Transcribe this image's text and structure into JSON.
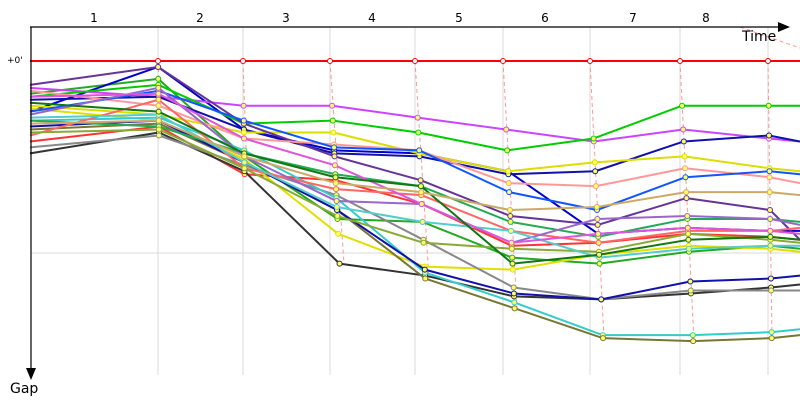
{
  "chart_data": {
    "type": "line",
    "x_axis_label": "Time",
    "y_axis_label": "Gap",
    "y_zero_label": "+0'",
    "laps": [
      "1",
      "2",
      "3",
      "4",
      "5",
      "6",
      "7",
      "8"
    ],
    "grid": true,
    "leader_series": {
      "color": "#ff0000",
      "values": [
        0,
        0,
        0,
        0,
        0,
        0,
        0,
        0,
        0,
        0
      ]
    },
    "y_units": "relative gap (0 = leader, 1 = bottom of chart)",
    "series": [
      {
        "color": "#ff3333",
        "values": [
          0.27,
          0.22,
          0.38,
          0.4,
          0.48,
          0.62,
          0.61,
          0.58,
          0.59,
          0.6
        ]
      },
      {
        "color": "#22aa22",
        "values": [
          0.11,
          0.06,
          0.32,
          0.53,
          0.54,
          0.66,
          0.68,
          0.64,
          0.62,
          0.63
        ]
      },
      {
        "color": "#0000cc",
        "values": [
          0.17,
          0.02,
          0.23,
          0.3,
          0.31,
          0.37,
          0.58,
          0.56,
          0.57,
          0.57
        ]
      },
      {
        "color": "#cc44ff",
        "values": [
          0.09,
          0.12,
          0.15,
          0.15,
          0.19,
          0.23,
          0.27,
          0.23,
          0.26,
          0.27
        ]
      },
      {
        "color": "#00cc00",
        "values": [
          0.12,
          0.08,
          0.21,
          0.2,
          0.24,
          0.3,
          0.26,
          0.15,
          0.15,
          0.15
        ]
      },
      {
        "color": "#1111aa",
        "values": [
          0.13,
          0.12,
          0.23,
          0.31,
          0.32,
          0.38,
          0.37,
          0.27,
          0.25,
          0.27
        ]
      },
      {
        "color": "#dddd00",
        "values": [
          0.15,
          0.18,
          0.24,
          0.24,
          0.31,
          0.37,
          0.34,
          0.32,
          0.36,
          0.37
        ]
      },
      {
        "color": "#e0e000",
        "values": [
          0.16,
          0.2,
          0.33,
          0.58,
          0.69,
          0.7,
          0.65,
          0.62,
          0.63,
          0.64
        ]
      },
      {
        "color": "#333333",
        "values": [
          0.31,
          0.24,
          0.37,
          0.68,
          0.72,
          0.79,
          0.8,
          0.78,
          0.76,
          0.75
        ]
      },
      {
        "color": "#888888",
        "values": [
          0.29,
          0.25,
          0.35,
          0.45,
          0.6,
          0.76,
          0.8,
          0.77,
          0.77,
          0.77
        ]
      },
      {
        "color": "#33cccc",
        "values": [
          0.2,
          0.19,
          0.3,
          0.46,
          0.71,
          0.81,
          0.92,
          0.92,
          0.91,
          0.9
        ]
      },
      {
        "color": "#777733",
        "values": [
          0.23,
          0.21,
          0.34,
          0.5,
          0.73,
          0.83,
          0.93,
          0.94,
          0.93,
          0.92
        ]
      },
      {
        "color": "#1111aa",
        "values": [
          0.22,
          0.2,
          0.34,
          0.5,
          0.7,
          0.78,
          0.8,
          0.74,
          0.73,
          0.72
        ]
      },
      {
        "color": "#663399",
        "values": [
          0.08,
          0.02,
          0.21,
          0.32,
          0.4,
          0.52,
          0.55,
          0.46,
          0.5,
          0.6
        ]
      },
      {
        "color": "#ff9999",
        "values": [
          0.1,
          0.15,
          0.26,
          0.28,
          0.3,
          0.41,
          0.42,
          0.36,
          0.39,
          0.41
        ]
      },
      {
        "color": "#1155ff",
        "values": [
          0.17,
          0.1,
          0.2,
          0.29,
          0.3,
          0.44,
          0.5,
          0.39,
          0.37,
          0.38
        ]
      },
      {
        "color": "#ff6666",
        "values": [
          0.25,
          0.13,
          0.36,
          0.43,
          0.45,
          0.57,
          0.61,
          0.57,
          0.57,
          0.56
        ]
      },
      {
        "color": "#22aa55",
        "values": [
          0.2,
          0.22,
          0.31,
          0.38,
          0.42,
          0.54,
          0.59,
          0.53,
          0.53,
          0.54
        ]
      },
      {
        "color": "#9966cc",
        "values": [
          0.18,
          0.09,
          0.32,
          0.47,
          0.48,
          0.61,
          0.53,
          0.52,
          0.53,
          0.55
        ]
      },
      {
        "color": "#88aa33",
        "values": [
          0.24,
          0.23,
          0.36,
          0.52,
          0.61,
          0.63,
          0.64,
          0.58,
          0.6,
          0.61
        ]
      },
      {
        "color": "#55cccc",
        "values": [
          0.19,
          0.18,
          0.34,
          0.49,
          0.54,
          0.57,
          0.66,
          0.63,
          0.62,
          0.62
        ]
      },
      {
        "color": "#dd55dd",
        "values": [
          0.12,
          0.11,
          0.26,
          0.35,
          0.48,
          0.61,
          0.58,
          0.56,
          0.57,
          0.58
        ]
      },
      {
        "color": "#117711",
        "values": [
          0.14,
          0.17,
          0.31,
          0.39,
          0.42,
          0.68,
          0.65,
          0.6,
          0.59,
          0.6
        ]
      },
      {
        "color": "#ccaa66",
        "values": [
          0.21,
          0.2,
          0.32,
          0.41,
          0.44,
          0.5,
          0.49,
          0.44,
          0.44,
          0.45
        ]
      }
    ]
  }
}
